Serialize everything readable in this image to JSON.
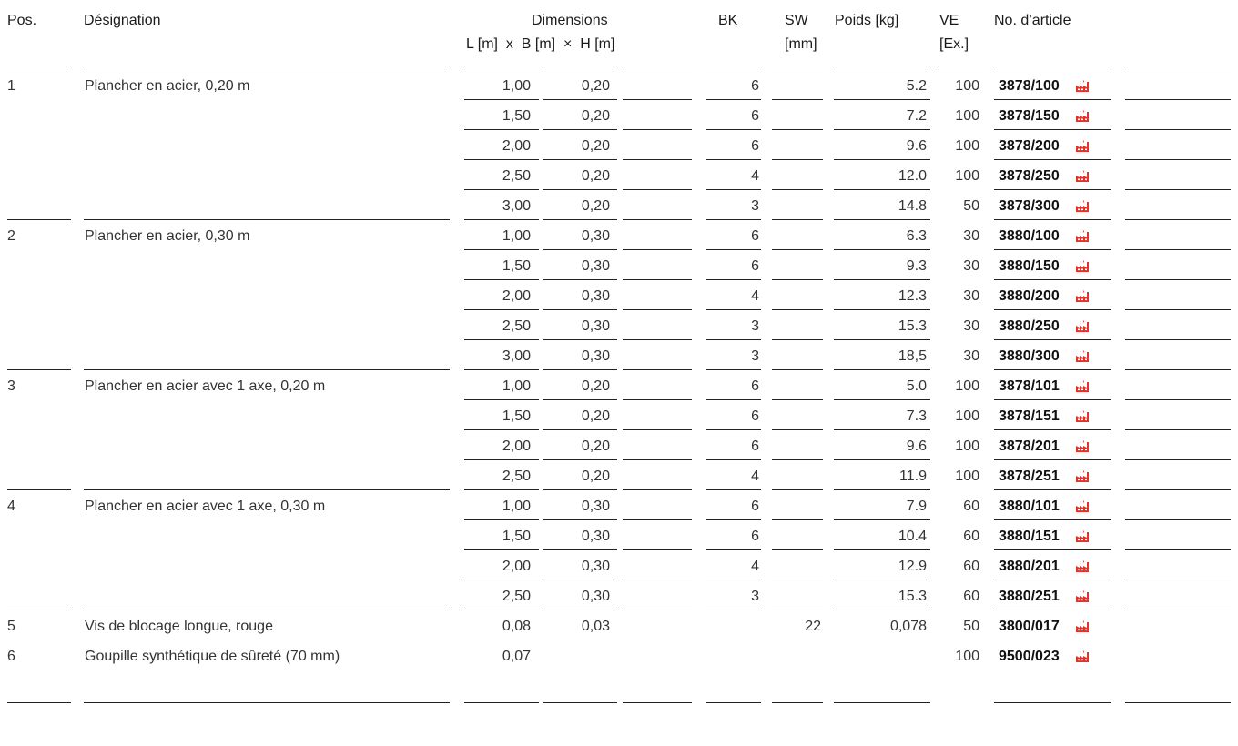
{
  "header": {
    "pos": "Pos.",
    "designation": "Désignation",
    "dimensions": "Dimensions",
    "dims_sub": "L [m]  x  B [m]  ×  H [m]",
    "bk": "BK",
    "sw": "SW",
    "sw_unit": "[mm]",
    "poids": "Poids [kg]",
    "ve": "VE",
    "ve_unit": "[Ex.]",
    "article": "No. d’article"
  },
  "colors": {
    "factory_icon": "#e0332b"
  },
  "icons": {
    "article_icon": "factory-icon"
  },
  "groups": [
    {
      "pos": "1",
      "designation": " Plancher en acier, 0,20 m",
      "rows": [
        {
          "l": "1,00",
          "b": "0,20",
          "h": "",
          "bk": "6",
          "sw": "",
          "poids": "5.2",
          "ve": "100",
          "art": "3878/100"
        },
        {
          "l": "1,50",
          "b": "0,20",
          "h": "",
          "bk": "6",
          "sw": "",
          "poids": "7.2",
          "ve": "100",
          "art": "3878/150"
        },
        {
          "l": "2,00",
          "b": "0,20",
          "h": "",
          "bk": "6",
          "sw": "",
          "poids": "9.6",
          "ve": "100",
          "art": "3878/200"
        },
        {
          "l": "2,50",
          "b": "0,20",
          "h": "",
          "bk": "4",
          "sw": "",
          "poids": "12.0",
          "ve": "100",
          "art": "3878/250"
        },
        {
          "l": "3,00",
          "b": "0,20",
          "h": "",
          "bk": "3",
          "sw": "",
          "poids": "14.8",
          "ve": "50",
          "art": "3878/300"
        }
      ]
    },
    {
      "pos": "2",
      "designation": "Plancher en acier, 0,30 m",
      "rows": [
        {
          "l": "1,00",
          "b": "0,30",
          "h": "",
          "bk": "6",
          "sw": "",
          "poids": "6.3",
          "ve": "30",
          "art": "3880/100"
        },
        {
          "l": "1,50",
          "b": "0,30",
          "h": "",
          "bk": "6",
          "sw": "",
          "poids": "9.3",
          "ve": "30",
          "art": "3880/150"
        },
        {
          "l": "2,00",
          "b": "0,30",
          "h": "",
          "bk": "4",
          "sw": "",
          "poids": "12.3",
          "ve": "30",
          "art": "3880/200"
        },
        {
          "l": "2,50",
          "b": "0,30",
          "h": "",
          "bk": "3",
          "sw": "",
          "poids": "15.3",
          "ve": "30",
          "art": "3880/250"
        },
        {
          "l": "3,00",
          "b": "0,30",
          "h": "",
          "bk": "3",
          "sw": "",
          "poids": "18,5",
          "ve": "30",
          "art": "3880/300"
        }
      ]
    },
    {
      "pos": "3",
      "designation": "Plancher en acier avec 1 axe, 0,20 m",
      "rows": [
        {
          "l": "1,00",
          "b": "0,20",
          "h": "",
          "bk": "6",
          "sw": "",
          "poids": "5.0",
          "ve": "100",
          "art": "3878/101"
        },
        {
          "l": "1,50",
          "b": "0,20",
          "h": "",
          "bk": "6",
          "sw": "",
          "poids": "7.3",
          "ve": "100",
          "art": "3878/151"
        },
        {
          "l": "2,00",
          "b": "0,20",
          "h": "",
          "bk": "6",
          "sw": "",
          "poids": "9.6",
          "ve": "100",
          "art": "3878/201"
        },
        {
          "l": "2,50",
          "b": "0,20",
          "h": "",
          "bk": "4",
          "sw": "",
          "poids": "11.9",
          "ve": "100",
          "art": "3878/251"
        }
      ]
    },
    {
      "pos": "4",
      "designation": "Plancher en acier avec 1 axe, 0,30 m",
      "rows": [
        {
          "l": "1,00",
          "b": "0,30",
          "h": "",
          "bk": "6",
          "sw": "",
          "poids": "7.9",
          "ve": "60",
          "art": "3880/101"
        },
        {
          "l": "1,50",
          "b": "0,30",
          "h": "",
          "bk": "6",
          "sw": "",
          "poids": "10.4",
          "ve": "60",
          "art": "3880/151"
        },
        {
          "l": "2,00",
          "b": "0,30",
          "h": "",
          "bk": "4",
          "sw": "",
          "poids": "12.9",
          "ve": "60",
          "art": "3880/201"
        },
        {
          "l": "2,50",
          "b": "0,30",
          "h": "",
          "bk": "3",
          "sw": "",
          "poids": "15.3",
          "ve": "60",
          "art": "3880/251"
        }
      ]
    },
    {
      "pos": "5",
      "designation": "Vis de blocage longue, rouge",
      "rows": [
        {
          "l": "0,08",
          "b": "0,03",
          "h": "",
          "bk": "",
          "sw": "22",
          "poids": "0,078",
          "ve": "50",
          "art": "3800/017"
        }
      ]
    },
    {
      "pos": "6",
      "designation": "Goupille synthétique de sûreté (70 mm)",
      "rows": [
        {
          "l": "0,07",
          "b": "",
          "h": "",
          "bk": "",
          "sw": "",
          "poids": "",
          "ve": "100",
          "art": "9500/023"
        }
      ]
    }
  ]
}
